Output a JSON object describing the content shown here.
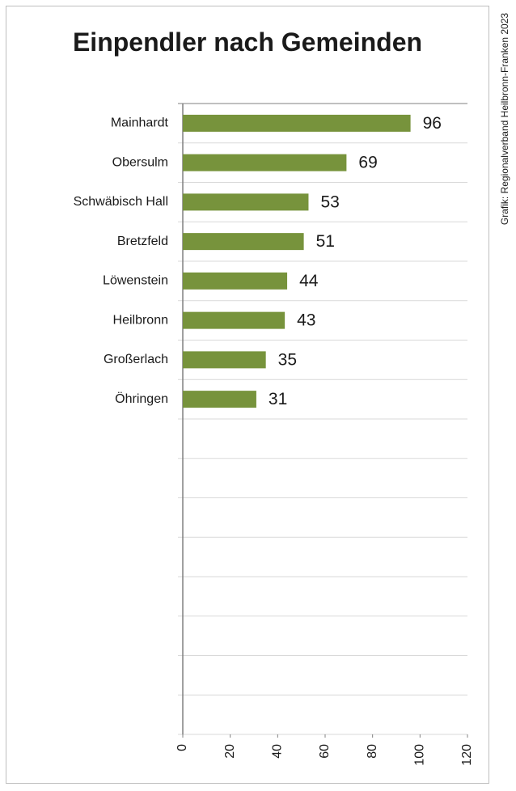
{
  "chart_data": {
    "type": "bar",
    "orientation": "horizontal",
    "title": "Einpendler nach Gemeinden",
    "credit": "Grafik: Regionalverband Heilbronn-Franken 2023",
    "categories": [
      "Mainhardt",
      "Obersulm",
      "Schwäbisch Hall",
      "Bretzfeld",
      "Löwenstein",
      "Heilbronn",
      "Großerlach",
      "Öhringen"
    ],
    "values": [
      96,
      69,
      53,
      51,
      44,
      43,
      35,
      31
    ],
    "data_labels": [
      "96",
      "69",
      "53",
      "51",
      "44",
      "43",
      "35",
      "31"
    ],
    "xlim": [
      0,
      120
    ],
    "x_ticks": [
      "0",
      "20",
      "40",
      "60",
      "80",
      "100",
      "120"
    ],
    "category_slots": 16,
    "grid": true,
    "bar_color": "#77933c"
  }
}
